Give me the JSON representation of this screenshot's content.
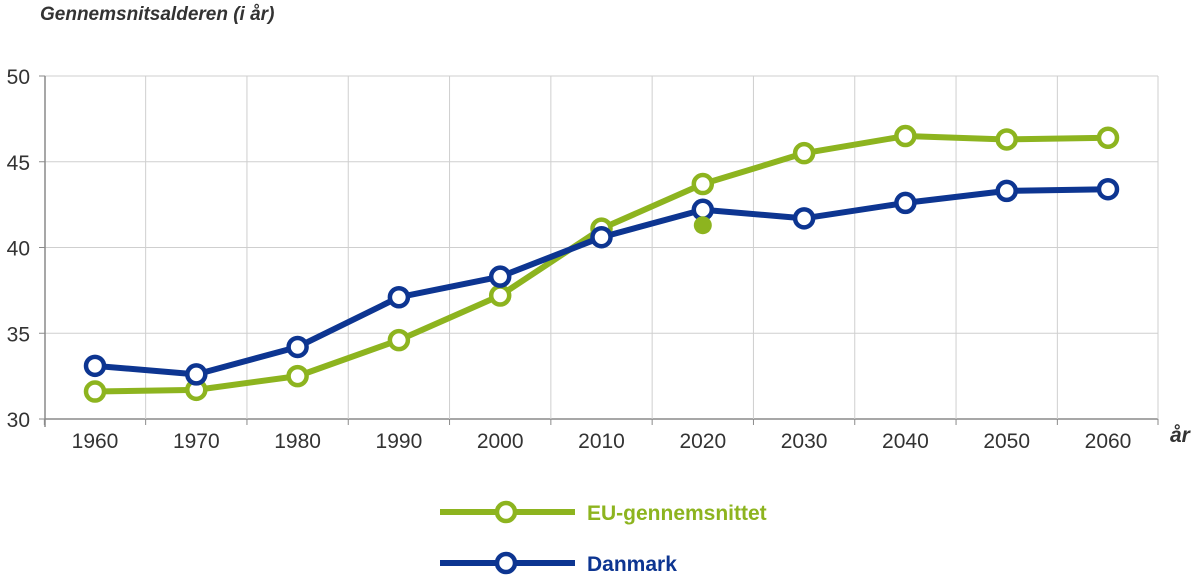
{
  "chart_data": {
    "type": "line",
    "ylabel": "Gennemsnitsalderen (i år)",
    "xlabel": "år",
    "x": [
      1960,
      1970,
      1980,
      1990,
      2000,
      2010,
      2020,
      2030,
      2040,
      2050,
      2060
    ],
    "x_tick_labels": [
      "1960",
      "1970",
      "1980",
      "1990",
      "2000",
      "2010",
      "2020",
      "2030",
      "2040",
      "2050",
      "2060"
    ],
    "ylim": [
      30,
      50
    ],
    "y_ticks": [
      30,
      35,
      40,
      45,
      50
    ],
    "y_tick_labels": [
      "30",
      "35",
      "40",
      "45",
      "50"
    ],
    "grid": true,
    "legend_position": "bottom-center",
    "series": [
      {
        "name": "EU-gennemsnittet",
        "color": "#8db41f",
        "values": [
          31.6,
          31.7,
          32.5,
          34.6,
          37.2,
          41.1,
          43.7,
          45.5,
          46.5,
          46.3,
          46.4
        ]
      },
      {
        "name": "Danmark",
        "color": "#0d3591",
        "values": [
          33.1,
          32.6,
          34.2,
          37.1,
          38.3,
          40.6,
          42.2,
          41.7,
          42.6,
          43.3,
          43.4
        ]
      }
    ],
    "extra_points": [
      {
        "series": "EU-gennemsnittet",
        "x": 2020,
        "y": 41.3,
        "filled": true
      }
    ]
  }
}
